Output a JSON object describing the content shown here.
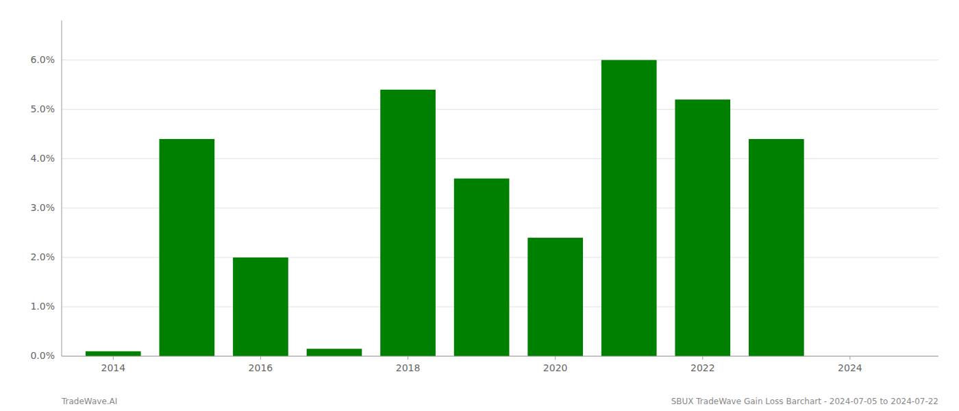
{
  "chart_data": {
    "type": "bar",
    "x": [
      2014,
      2015,
      2016,
      2017,
      2018,
      2019,
      2020,
      2021,
      2022,
      2023,
      2024
    ],
    "values": [
      0.001,
      0.044,
      0.02,
      0.0015,
      0.054,
      0.036,
      0.024,
      0.06,
      0.052,
      0.044,
      0.0
    ],
    "color": "#008000",
    "xlim": [
      2013.3,
      2025.2
    ],
    "xticks": [
      2014,
      2016,
      2018,
      2020,
      2022,
      2024
    ],
    "ylim": [
      0,
      0.068
    ],
    "yticks": [
      {
        "value": 0.0,
        "label": "0.0%"
      },
      {
        "value": 0.01,
        "label": "1.0%"
      },
      {
        "value": 0.02,
        "label": "2.0%"
      },
      {
        "value": 0.03,
        "label": "3.0%"
      },
      {
        "value": 0.04,
        "label": "4.0%"
      },
      {
        "value": 0.05,
        "label": "5.0%"
      },
      {
        "value": 0.06,
        "label": "6.0%"
      }
    ],
    "grid": true,
    "annotations": [
      "TradeWave.AI",
      "SBUX TradeWave Gain Loss Barchart - 2024-07-05 to 2024-07-22"
    ]
  }
}
